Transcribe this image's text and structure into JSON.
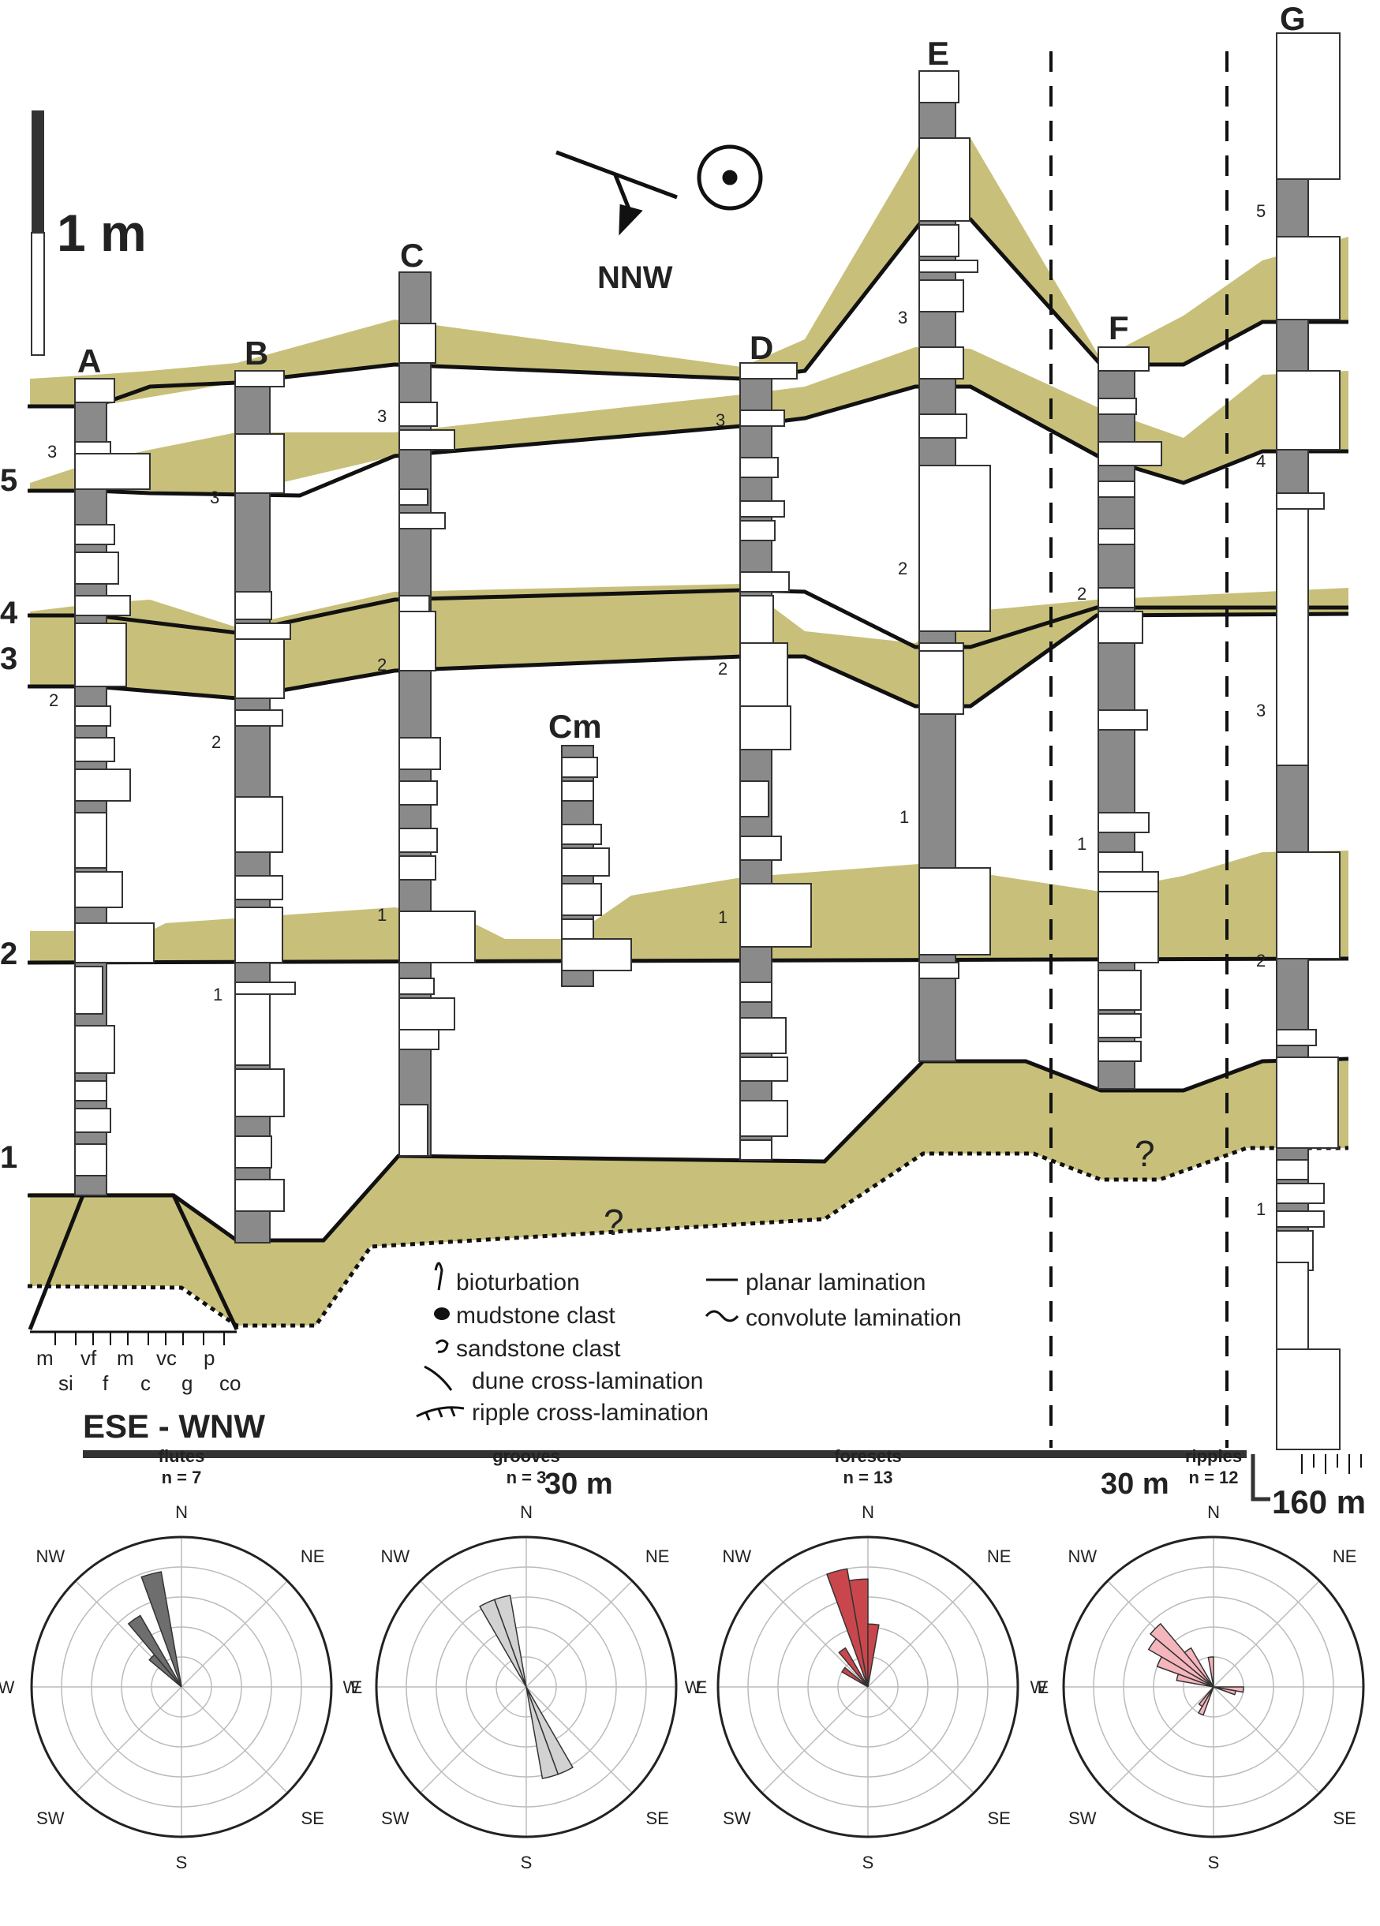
{
  "scale_bar": {
    "label": "1 m"
  },
  "orientation": {
    "label": "NNW"
  },
  "columns": [
    {
      "id": "A",
      "label": "A",
      "ticks": [
        "3",
        "2"
      ]
    },
    {
      "id": "B",
      "label": "B",
      "ticks": [
        "3",
        "2",
        "1"
      ]
    },
    {
      "id": "C",
      "label": "C",
      "ticks": [
        "3",
        "2",
        "1"
      ]
    },
    {
      "id": "Cm",
      "label": "Cm",
      "ticks": []
    },
    {
      "id": "D",
      "label": "D",
      "ticks": [
        "3",
        "2",
        "1"
      ]
    },
    {
      "id": "E",
      "label": "E",
      "ticks": [
        "3",
        "2",
        "1"
      ]
    },
    {
      "id": "F",
      "label": "F",
      "ticks": [
        "2",
        "1"
      ]
    },
    {
      "id": "G",
      "label": "G",
      "ticks": [
        "5",
        "4",
        "3",
        "2",
        "1"
      ]
    }
  ],
  "horizons": [
    "1",
    "2",
    "3",
    "4",
    "5"
  ],
  "unknown_mark": "?",
  "legend": {
    "bioturbation": "bioturbation",
    "mudstone_clast": "mudstone clast",
    "sandstone_clast": "sandstone clast",
    "dune": "dune cross-lamination",
    "ripple": "ripple cross-lamination",
    "planar": "planar lamination",
    "convolute": "convolute lamination"
  },
  "grain_scale": {
    "top": [
      "m",
      "vf",
      "m",
      "vc",
      "p"
    ],
    "bottom": [
      "si",
      "f",
      "c",
      "g",
      "co"
    ]
  },
  "transect": {
    "label": "ESE - WNW",
    "dist1": "30 m",
    "dist2": "30 m",
    "dist3": "160 m"
  },
  "colors": {
    "olive": "#c8c07a",
    "mud": "#8a8a8a",
    "flutes": "#6e6e6e",
    "grooves": "#d2d2d2",
    "foresets": "#c9474c",
    "ripples": "#f5b5bc"
  },
  "roses": [
    {
      "title": "flutes",
      "n": "n = 7",
      "color": "#6e6e6e",
      "directions": {
        "N": "N",
        "NE": "NE",
        "E": "E",
        "SE": "SE",
        "S": "S",
        "SW": "SW",
        "W": "W",
        "NW": "NW"
      },
      "petals": [
        {
          "az": 345,
          "r": 0.78
        },
        {
          "az": 325,
          "r": 0.55
        },
        {
          "az": 315,
          "r": 0.28
        }
      ]
    },
    {
      "title": "grooves",
      "n": "n = 3",
      "color": "#d2d2d2",
      "directions": {
        "N": "N",
        "NE": "NE",
        "E": "E",
        "SE": "SE",
        "S": "S",
        "SW": "SW",
        "W": "W",
        "NW": "NW"
      },
      "petals": [
        {
          "az": 335,
          "r": 0.62
        },
        {
          "az": 345,
          "r": 0.62
        },
        {
          "az": 155,
          "r": 0.62
        },
        {
          "az": 165,
          "r": 0.62
        }
      ]
    },
    {
      "title": "foresets",
      "n": "n = 13",
      "color": "#c9474c",
      "directions": {
        "N": "N",
        "NE": "NE",
        "E": "E",
        "SE": "SE",
        "S": "S",
        "SW": "SW",
        "W": "W",
        "NW": "NW"
      },
      "petals": [
        {
          "az": 345,
          "r": 0.8
        },
        {
          "az": 355,
          "r": 0.72
        },
        {
          "az": 5,
          "r": 0.42
        },
        {
          "az": 325,
          "r": 0.3
        },
        {
          "az": 305,
          "r": 0.2
        }
      ]
    },
    {
      "title": "ripples",
      "n": "n = 12",
      "color": "#f5b5bc",
      "directions": {
        "N": "N",
        "NE": "NE",
        "E": "E",
        "SE": "SE",
        "S": "S",
        "SW": "SW",
        "W": "W",
        "NW": "NW"
      },
      "petals": [
        {
          "az": 315,
          "r": 0.55
        },
        {
          "az": 305,
          "r": 0.5
        },
        {
          "az": 295,
          "r": 0.4
        },
        {
          "az": 325,
          "r": 0.3
        },
        {
          "az": 285,
          "r": 0.25
        },
        {
          "az": 355,
          "r": 0.2
        },
        {
          "az": 95,
          "r": 0.2
        },
        {
          "az": 105,
          "r": 0.15
        },
        {
          "az": 205,
          "r": 0.2
        },
        {
          "az": 215,
          "r": 0.15
        }
      ]
    }
  ]
}
